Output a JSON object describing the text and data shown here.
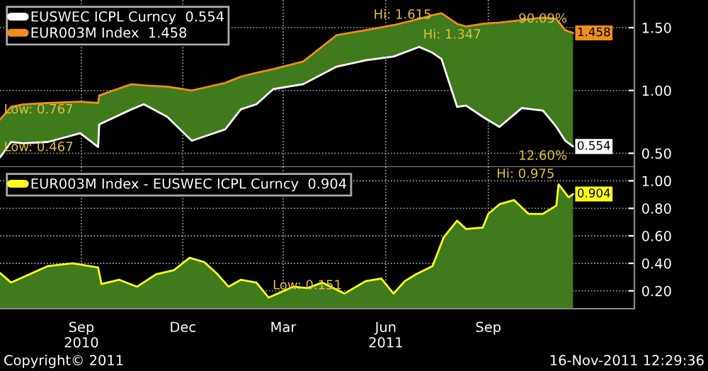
{
  "chart_data": [
    {
      "type": "line",
      "x": [
        "2010-06-20",
        "2010-06-30",
        "2010-07-11",
        "2010-08-02",
        "2010-08-31",
        "2010-09-16",
        "2010-09-17",
        "2010-10-16",
        "2010-10-27",
        "2010-11-17",
        "2010-12-09",
        "2011-01-08",
        "2011-01-22",
        "2011-02-05",
        "2011-02-20",
        "2011-03-19",
        "2011-04-18",
        "2011-05-14",
        "2011-06-08",
        "2011-07-01",
        "2011-07-13",
        "2011-07-21",
        "2011-08-04",
        "2011-08-12",
        "2011-08-27",
        "2011-09-11",
        "2011-10-01",
        "2011-10-20",
        "2011-11-01",
        "2011-11-09",
        "2011-11-16"
      ],
      "series": [
        {
          "name": "EUSWEC ICPL Curncy  0.554",
          "color": "#ffffff",
          "values": [
            0.467,
            0.59,
            0.58,
            0.59,
            0.66,
            0.55,
            0.73,
            0.85,
            0.89,
            0.79,
            0.6,
            0.69,
            0.85,
            0.89,
            1.01,
            1.05,
            1.19,
            1.24,
            1.27,
            1.347,
            1.3,
            1.25,
            0.87,
            0.88,
            0.79,
            0.71,
            0.86,
            0.84,
            0.71,
            0.6,
            0.554
          ],
          "value_labels": [
            null,
            null,
            null,
            null,
            null,
            null,
            null,
            null,
            null,
            null,
            null,
            null,
            null,
            null,
            null,
            null,
            null,
            null,
            null,
            null,
            null,
            null,
            null,
            null,
            null,
            null,
            null,
            null,
            null,
            null,
            "0.554"
          ]
        },
        {
          "name": "EUR003M Index  1.458",
          "color": "#f08c1e",
          "values": [
            0.767,
            0.87,
            0.89,
            0.9,
            0.91,
            0.9,
            0.96,
            1.05,
            1.04,
            1.03,
            1.0,
            1.06,
            1.11,
            1.14,
            1.17,
            1.23,
            1.44,
            1.48,
            1.52,
            1.57,
            1.6,
            1.615,
            1.53,
            1.51,
            1.53,
            1.54,
            1.56,
            1.58,
            1.57,
            1.48,
            1.458
          ],
          "value_labels": [
            null,
            null,
            null,
            null,
            null,
            null,
            null,
            null,
            null,
            null,
            null,
            null,
            null,
            null,
            null,
            null,
            null,
            null,
            null,
            null,
            null,
            null,
            null,
            null,
            null,
            null,
            null,
            null,
            null,
            null,
            "1.458"
          ],
          "lower": [
            0.467,
            0.59,
            0.58,
            0.59,
            0.66,
            0.55,
            0.73,
            0.85,
            0.89,
            0.79,
            0.6,
            0.69,
            0.85,
            0.89,
            1.01,
            1.05,
            1.19,
            1.24,
            1.27,
            1.347,
            1.3,
            1.25,
            0.87,
            0.88,
            0.79,
            0.71,
            0.86,
            0.84,
            0.71,
            0.6,
            0.554
          ],
          "upper": [
            0.767,
            0.87,
            0.89,
            0.9,
            0.91,
            0.9,
            0.96,
            1.05,
            1.04,
            1.03,
            1.0,
            1.06,
            1.11,
            1.14,
            1.17,
            1.23,
            1.44,
            1.48,
            1.52,
            1.57,
            1.6,
            1.615,
            1.53,
            1.51,
            1.53,
            1.54,
            1.56,
            1.58,
            1.57,
            1.48,
            1.458
          ]
        }
      ],
      "xlim": [
        "2010-06-20",
        "2012-01-10"
      ],
      "xticks": [
        {
          "value": "2010-09-01",
          "label": null
        },
        {
          "value": "2010-12-01",
          "label": null
        },
        {
          "value": "2011-03-01",
          "label": null
        },
        {
          "value": "2011-06-01",
          "label": null
        },
        {
          "value": "2011-09-01",
          "label": null
        }
      ],
      "ylim": [
        0.39,
        1.72
      ],
      "yticks": [
        {
          "value": 0.5,
          "label": "0.50"
        },
        {
          "value": 1.0,
          "label": "1.00"
        },
        {
          "value": 1.5,
          "label": "1.50"
        }
      ],
      "tick_labels": "y",
      "grid": true,
      "legend": "top left",
      "annotations": [
        {
          "text": "Low: 0.767",
          "x": "2010-06-20",
          "y": 0.767
        },
        {
          "text": "Low: 0.467",
          "x": "2010-06-20",
          "y": 0.467
        },
        {
          "text": "Hi: 1.615",
          "x": "2011-07-21",
          "y": 1.615
        },
        {
          "text": "Hi: 1.347",
          "x": "2011-07-01",
          "y": 1.347
        },
        {
          "text": "90.09%",
          "x": "2011-11-16",
          "y": 1.458
        },
        {
          "text": "12.60%",
          "x": "2011-11-16",
          "y": 0.554
        }
      ]
    },
    {
      "type": "area",
      "x": [
        "2010-06-20",
        "2010-06-30",
        "2010-07-11",
        "2010-08-02",
        "2010-08-24",
        "2010-09-16",
        "2010-09-19",
        "2010-10-05",
        "2010-10-21",
        "2010-11-07",
        "2010-11-23",
        "2010-12-07",
        "2010-12-20",
        "2010-12-31",
        "2011-01-11",
        "2011-01-22",
        "2011-02-05",
        "2011-02-16",
        "2011-03-10",
        "2011-03-23",
        "2011-04-05",
        "2011-04-25",
        "2011-05-14",
        "2011-05-28",
        "2011-06-08",
        "2011-06-18",
        "2011-06-28",
        "2011-07-13",
        "2011-07-23",
        "2011-08-04",
        "2011-08-12",
        "2011-08-27",
        "2011-09-01",
        "2011-09-11",
        "2011-09-24",
        "2011-10-07",
        "2011-10-20",
        "2011-11-01",
        "2011-11-03",
        "2011-11-12",
        "2011-11-16"
      ],
      "series": [
        {
          "name": "EUR003M Index - EUSWEC ICPL Curncy  0.904",
          "color": "#ffff1e",
          "values": [
            0.33,
            0.26,
            0.3,
            0.38,
            0.4,
            0.37,
            0.25,
            0.28,
            0.23,
            0.32,
            0.35,
            0.44,
            0.41,
            0.33,
            0.23,
            0.28,
            0.26,
            0.151,
            0.23,
            0.22,
            0.26,
            0.18,
            0.27,
            0.29,
            0.18,
            0.27,
            0.32,
            0.38,
            0.59,
            0.71,
            0.65,
            0.66,
            0.76,
            0.83,
            0.86,
            0.76,
            0.76,
            0.82,
            0.975,
            0.88,
            0.904
          ],
          "value_labels": [
            null,
            null,
            null,
            null,
            null,
            null,
            null,
            null,
            null,
            null,
            null,
            null,
            null,
            null,
            null,
            null,
            null,
            null,
            null,
            null,
            null,
            null,
            null,
            null,
            null,
            null,
            null,
            null,
            null,
            null,
            null,
            null,
            null,
            null,
            null,
            null,
            null,
            null,
            null,
            null,
            "0.904"
          ]
        }
      ],
      "xlim": [
        "2010-06-20",
        "2012-01-10"
      ],
      "xticks": [
        {
          "value": "2010-09-01",
          "label": "Sep\n2010"
        },
        {
          "value": "2010-12-01",
          "label": "Dec"
        },
        {
          "value": "2011-03-01",
          "label": "Mar"
        },
        {
          "value": "2011-06-01",
          "label": "Jun\n2011"
        },
        {
          "value": "2011-09-01",
          "label": "Sep"
        }
      ],
      "ylim": [
        0.07,
        1.1
      ],
      "yticks": [
        {
          "value": 0.2,
          "label": "0.20"
        },
        {
          "value": 0.4,
          "label": "0.40"
        },
        {
          "value": 0.6,
          "label": "0.60"
        },
        {
          "value": 0.8,
          "label": "0.80"
        },
        {
          "value": 1.0,
          "label": "1.00"
        }
      ],
      "grid": true,
      "legend": "top left",
      "annotations": [
        {
          "text": "Low: 0.151",
          "x": "2011-02-16",
          "y": 0.151
        },
        {
          "text": "Hi: 0.975",
          "x": "2011-11-03",
          "y": 0.975
        },
        "Copyright© 2011",
        "16-Nov-2011 12:29:36"
      ]
    }
  ]
}
